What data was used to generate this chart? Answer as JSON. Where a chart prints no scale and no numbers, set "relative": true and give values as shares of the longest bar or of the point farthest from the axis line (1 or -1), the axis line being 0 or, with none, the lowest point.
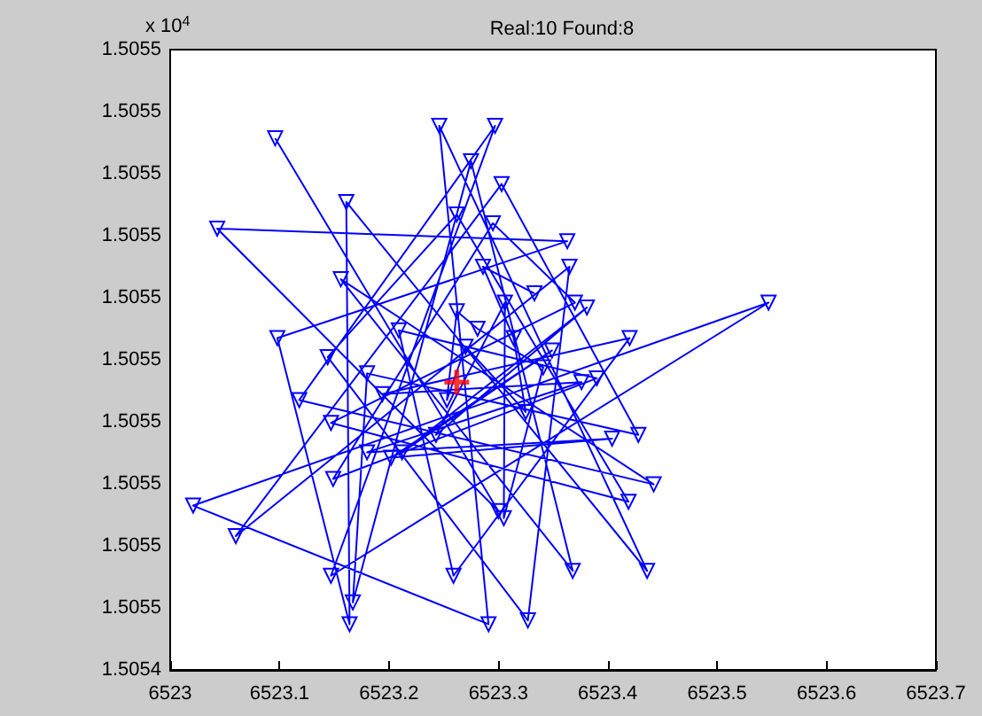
{
  "chart_data": {
    "type": "line",
    "title": "Real:10 Found:8",
    "relative": true,
    "annotations": [
      "x 10$^{4}$",
      "1.5054",
      "1.5055",
      "1.5055",
      "1.5055",
      "1.5055",
      "1.5055",
      "1.5055",
      "1.5055",
      "1.5055",
      "1.5055",
      "1.5055"
    ],
    "series": [
      {
        "color": "#0000ff",
        "marker": "triangle",
        "line_style": "solid",
        "x": [
          6523.096,
          6523.3,
          6523.043,
          6523.363,
          6523.098,
          6523.164,
          6523.161,
          6523.436,
          6523.246,
          6523.291,
          6523.021,
          6523.547,
          6523.147,
          6523.297,
          6523.118,
          6523.442,
          6523.156,
          6523.368,
          6523.275,
          6523.167,
          6523.18,
          6523.428,
          6523.303,
          6523.06,
          6523.365,
          6523.327,
          6523.144,
          6523.262,
          6523.419,
          6523.147,
          6523.37,
          6523.295,
          6523.149,
          6523.39,
          6523.209,
          6523.259,
          6523.42,
          6523.194,
          6523.376,
          6523.18,
          6523.404,
          6523.202,
          6523.349,
          6523.212,
          6523.381,
          6523.243,
          6523.306,
          6523.305,
          6523.341,
          6523.281,
          6523.262,
          6523.253,
          6523.27,
          6523.325,
          6523.314,
          6523.286,
          6523.333
        ],
        "values": [
          0.977,
          0.292,
          0.811,
          0.788,
          0.61,
          0.084,
          0.86,
          0.182,
          1.0,
          0.084,
          0.302,
          0.675,
          0.173,
          1.0,
          0.496,
          0.341,
          0.718,
          0.182,
          0.935,
          0.124,
          0.545,
          0.432,
          0.893,
          0.246,
          0.741,
          0.091,
          0.575,
          0.837,
          0.309,
          0.454,
          0.675,
          0.821,
          0.351,
          0.536,
          0.624,
          0.173,
          0.61,
          0.507,
          0.529,
          0.4,
          0.425,
          0.39,
          0.587,
          0.4,
          0.666,
          0.432,
          0.675,
          0.279,
          0.556,
          0.627,
          0.659,
          0.496,
          0.594,
          0.474,
          0.61,
          0.741,
          0.692
        ]
      },
      {
        "type": "scatter",
        "color": "#ff0000",
        "marker": "cross",
        "x": [
          6523.262
        ],
        "values": [
          0.529
        ]
      }
    ],
    "xlim": [
      6523,
      6523.7
    ],
    "xticks": [
      6523,
      6523.1,
      6523.2,
      6523.3,
      6523.4,
      6523.5,
      6523.6,
      6523.7
    ]
  }
}
